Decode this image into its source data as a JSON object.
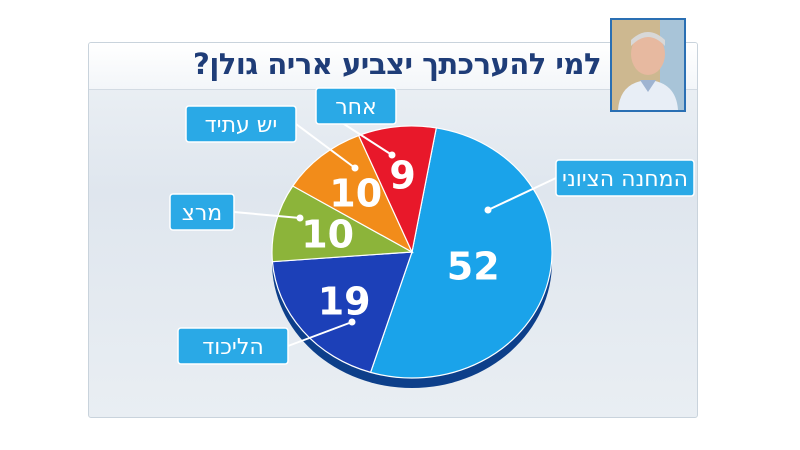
{
  "title": "למי להערכתך יצביע אריה גולן?",
  "chart_data": {
    "type": "pie",
    "title": "למי להערכתך יצביע אריה גולן?",
    "slices": [
      {
        "label": "המחנה הציוני",
        "value": 52,
        "color": "#1aa3ea"
      },
      {
        "label": "הליכוד",
        "value": 19,
        "color": "#1c40b8"
      },
      {
        "label": "מרצ",
        "value": 10,
        "color": "#8cb43a"
      },
      {
        "label": "יש עתיד",
        "value": 10,
        "color": "#f28c1a"
      },
      {
        "label": "אחר",
        "value": 9,
        "color": "#e8182a"
      }
    ],
    "legend_style": "callout-labels"
  },
  "photo": {
    "icon": "person-portrait"
  }
}
